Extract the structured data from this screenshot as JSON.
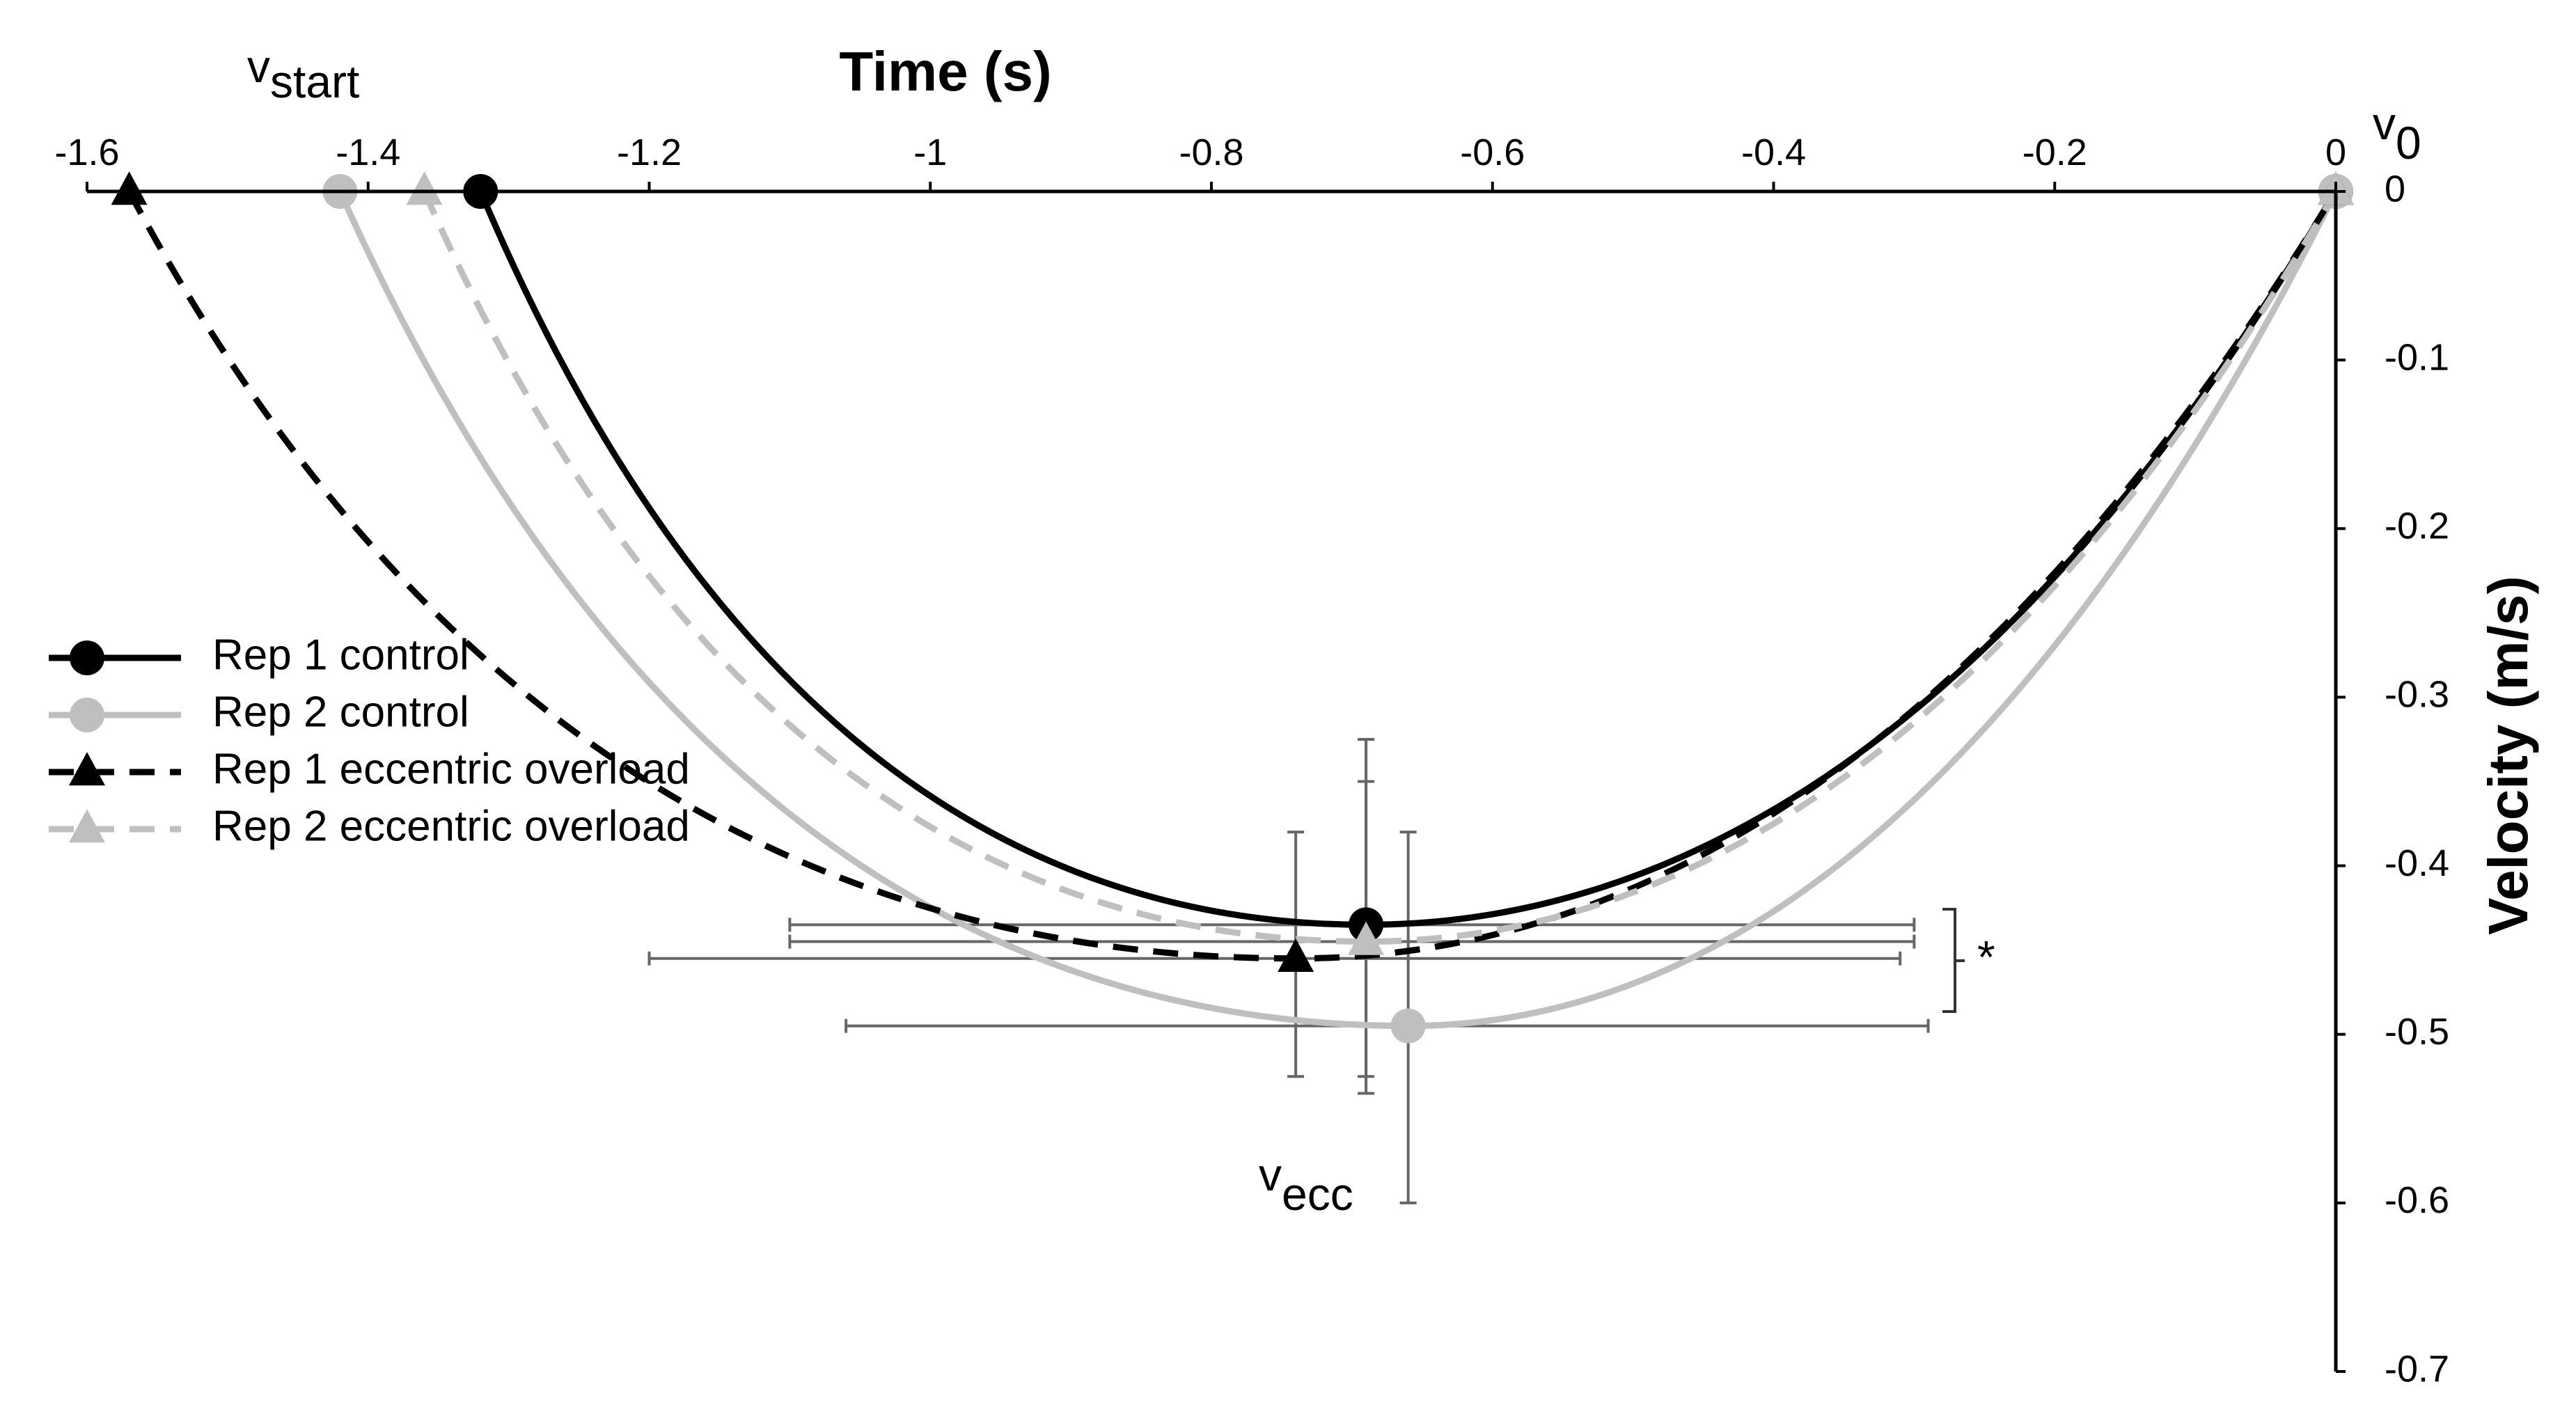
{
  "chart_data": {
    "type": "line",
    "title": "",
    "xlabel": "Time (s)",
    "ylabel": "Velocity (m/s)",
    "xlim": [
      -1.6,
      0
    ],
    "ylim": [
      -0.7,
      0
    ],
    "x_ticks": [
      -1.6,
      -1.4,
      -1.2,
      -1,
      -0.8,
      -0.6,
      -0.4,
      -0.2,
      0
    ],
    "x_tick_labels": [
      "-1.6",
      "-1.4",
      "-1.2",
      "-1",
      "-0.8",
      "-0.6",
      "-0.4",
      "-0.2",
      "0"
    ],
    "y_ticks": [
      0,
      -0.1,
      -0.2,
      -0.3,
      -0.4,
      -0.5,
      -0.6,
      -0.7
    ],
    "y_tick_labels": [
      "0",
      "-0.1",
      "-0.2",
      "-0.3",
      "-0.4",
      "-0.5",
      "-0.6",
      "-0.7"
    ],
    "grid": false,
    "legend_position": "left",
    "series": [
      {
        "name": "Rep 1 control",
        "color": "#000000",
        "dash": "solid",
        "marker": "circle",
        "start": [
          -1.32,
          0
        ],
        "min": [
          -0.69,
          -0.435
        ],
        "end": [
          0,
          0
        ],
        "error_x": [
          -1.1,
          -0.3
        ],
        "error_y": [
          -0.525,
          -0.325
        ]
      },
      {
        "name": "Rep 2 control",
        "color": "#bfbfbf",
        "dash": "solid",
        "marker": "circle",
        "start": [
          -1.42,
          0
        ],
        "min": [
          -0.66,
          -0.495
        ],
        "end": [
          0,
          0
        ],
        "error_x": [
          -1.06,
          -0.29
        ],
        "error_y": [
          -0.6,
          -0.38
        ]
      },
      {
        "name": "Rep 1 eccentric overload",
        "color": "#000000",
        "dash": "dashed",
        "marker": "triangle",
        "start": [
          -1.57,
          0
        ],
        "min": [
          -0.74,
          -0.455
        ],
        "end": [
          0,
          0
        ],
        "error_x": [
          -1.2,
          -0.31
        ],
        "error_y": [
          -0.525,
          -0.38
        ]
      },
      {
        "name": "Rep 2 eccentric overload",
        "color": "#bfbfbf",
        "dash": "dashed",
        "marker": "triangle",
        "start": [
          -1.36,
          0
        ],
        "min": [
          -0.69,
          -0.445
        ],
        "end": [
          0,
          0
        ],
        "error_x": [
          -1.1,
          -0.3
        ],
        "error_y": [
          -0.535,
          -0.35
        ]
      }
    ],
    "annotations": {
      "v_start": {
        "base": "v",
        "sub": "start"
      },
      "v_0": {
        "base": "v",
        "sub": "0"
      },
      "v_ecc": {
        "base": "v",
        "sub": "ecc"
      },
      "significance": "*"
    }
  }
}
